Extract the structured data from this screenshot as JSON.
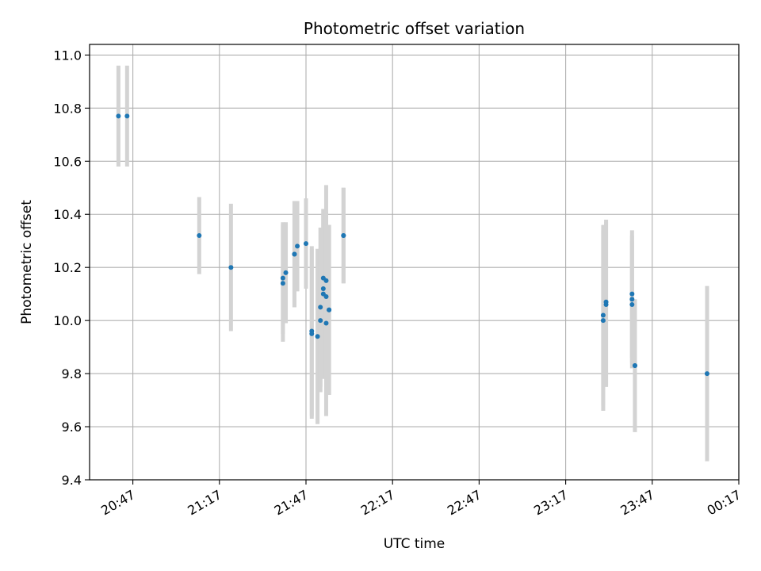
{
  "chart_data": {
    "type": "scatter",
    "title": "Photometric offset variation",
    "xlabel": "UTC time",
    "ylabel": "Photometric offset",
    "x_unit": "minutes",
    "xlim": [
      "20:32",
      "00:17"
    ],
    "ylim": [
      9.4,
      11.04
    ],
    "xticks": [
      "20:47",
      "21:17",
      "21:47",
      "22:17",
      "22:47",
      "23:17",
      "23:47",
      "00:17"
    ],
    "yticks": [
      "9.4",
      "9.6",
      "9.8",
      "10.0",
      "10.2",
      "10.4",
      "10.6",
      "10.8",
      "11.0"
    ],
    "grid": true,
    "marker_color": "#1f77b4",
    "errorbar_color": "#d3d3d3",
    "points": [
      {
        "t": "20:42",
        "y": 10.77,
        "err": 0.19
      },
      {
        "t": "20:45",
        "y": 10.77,
        "err": 0.19
      },
      {
        "t": "21:10",
        "y": 10.32,
        "err": 0.145
      },
      {
        "t": "21:21",
        "y": 10.2,
        "err": 0.24
      },
      {
        "t": "21:39",
        "y": 10.14,
        "err": 0.22
      },
      {
        "t": "21:39",
        "y": 10.16,
        "err": 0.21
      },
      {
        "t": "21:40",
        "y": 10.18,
        "err": 0.19
      },
      {
        "t": "21:43",
        "y": 10.25,
        "err": 0.2
      },
      {
        "t": "21:43",
        "y": 10.25,
        "err": 0.2
      },
      {
        "t": "21:44",
        "y": 10.28,
        "err": 0.17
      },
      {
        "t": "21:47",
        "y": 10.29,
        "err": 0.17
      },
      {
        "t": "21:49",
        "y": 9.96,
        "err": 0.32
      },
      {
        "t": "21:49",
        "y": 9.95,
        "err": 0.32
      },
      {
        "t": "21:51",
        "y": 9.94,
        "err": 0.33
      },
      {
        "t": "21:52",
        "y": 10.0,
        "err": 0.27
      },
      {
        "t": "21:52",
        "y": 10.05,
        "err": 0.3
      },
      {
        "t": "21:53",
        "y": 10.12,
        "err": 0.28
      },
      {
        "t": "21:53",
        "y": 10.1,
        "err": 0.32
      },
      {
        "t": "21:53",
        "y": 10.16,
        "err": 0.26
      },
      {
        "t": "21:54",
        "y": 10.15,
        "err": 0.36
      },
      {
        "t": "21:54",
        "y": 10.09,
        "err": 0.32
      },
      {
        "t": "21:54",
        "y": 9.99,
        "err": 0.35
      },
      {
        "t": "21:55",
        "y": 10.04,
        "err": 0.32
      },
      {
        "t": "21:55",
        "y": 10.04,
        "err": 0.32
      },
      {
        "t": "22:00",
        "y": 10.32,
        "err": 0.18
      },
      {
        "t": "22:00",
        "y": 10.32,
        "err": 0.18
      },
      {
        "t": "23:30",
        "y": 10.0,
        "err": 0.34
      },
      {
        "t": "23:30",
        "y": 10.02,
        "err": 0.34
      },
      {
        "t": "23:31",
        "y": 10.06,
        "err": 0.31
      },
      {
        "t": "23:31",
        "y": 10.07,
        "err": 0.31
      },
      {
        "t": "23:40",
        "y": 10.1,
        "err": 0.24
      },
      {
        "t": "23:40",
        "y": 10.08,
        "err": 0.24
      },
      {
        "t": "23:40",
        "y": 10.06,
        "err": 0.24
      },
      {
        "t": "23:41",
        "y": 9.83,
        "err": 0.25
      },
      {
        "t": "23:41",
        "y": 9.83,
        "err": 0.25
      },
      {
        "t": "00:06",
        "y": 9.8,
        "err": 0.33
      }
    ]
  }
}
